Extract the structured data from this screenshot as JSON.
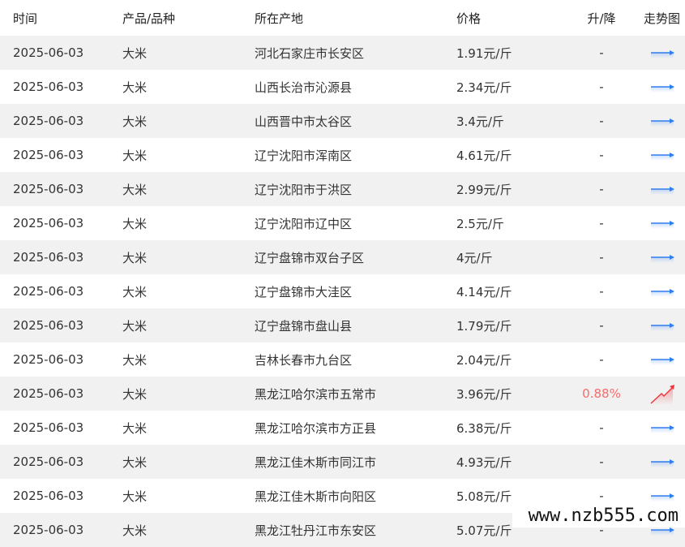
{
  "header": {
    "time": "时间",
    "product": "产品/品种",
    "origin": "所在产地",
    "price": "价格",
    "change": "升/降",
    "trend": "走势图"
  },
  "colors": {
    "flat": "#2f7ef0",
    "up": "#f0353f"
  },
  "rows": [
    {
      "time": "2025-06-03",
      "product": "大米",
      "origin": "河北石家庄市长安区",
      "price": "1.91元/斤",
      "change": "-",
      "trend": "flat"
    },
    {
      "time": "2025-06-03",
      "product": "大米",
      "origin": "山西长治市沁源县",
      "price": "2.34元/斤",
      "change": "-",
      "trend": "flat"
    },
    {
      "time": "2025-06-03",
      "product": "大米",
      "origin": "山西晋中市太谷区",
      "price": "3.4元/斤",
      "change": "-",
      "trend": "flat"
    },
    {
      "time": "2025-06-03",
      "product": "大米",
      "origin": "辽宁沈阳市浑南区",
      "price": "4.61元/斤",
      "change": "-",
      "trend": "flat"
    },
    {
      "time": "2025-06-03",
      "product": "大米",
      "origin": "辽宁沈阳市于洪区",
      "price": "2.99元/斤",
      "change": "-",
      "trend": "flat"
    },
    {
      "time": "2025-06-03",
      "product": "大米",
      "origin": "辽宁沈阳市辽中区",
      "price": "2.5元/斤",
      "change": "-",
      "trend": "flat"
    },
    {
      "time": "2025-06-03",
      "product": "大米",
      "origin": "辽宁盘锦市双台子区",
      "price": "4元/斤",
      "change": "-",
      "trend": "flat"
    },
    {
      "time": "2025-06-03",
      "product": "大米",
      "origin": "辽宁盘锦市大洼区",
      "price": "4.14元/斤",
      "change": "-",
      "trend": "flat"
    },
    {
      "time": "2025-06-03",
      "product": "大米",
      "origin": "辽宁盘锦市盘山县",
      "price": "1.79元/斤",
      "change": "-",
      "trend": "flat"
    },
    {
      "time": "2025-06-03",
      "product": "大米",
      "origin": "吉林长春市九台区",
      "price": "2.04元/斤",
      "change": "-",
      "trend": "flat"
    },
    {
      "time": "2025-06-03",
      "product": "大米",
      "origin": "黑龙江哈尔滨市五常市",
      "price": "3.96元/斤",
      "change": "0.88%",
      "trend": "up"
    },
    {
      "time": "2025-06-03",
      "product": "大米",
      "origin": "黑龙江哈尔滨市方正县",
      "price": "6.38元/斤",
      "change": "-",
      "trend": "flat"
    },
    {
      "time": "2025-06-03",
      "product": "大米",
      "origin": "黑龙江佳木斯市同江市",
      "price": "4.93元/斤",
      "change": "-",
      "trend": "flat"
    },
    {
      "time": "2025-06-03",
      "product": "大米",
      "origin": "黑龙江佳木斯市向阳区",
      "price": "5.08元/斤",
      "change": "-",
      "trend": "flat"
    },
    {
      "time": "2025-06-03",
      "product": "大米",
      "origin": "黑龙江牡丹江市东安区",
      "price": "5.07元/斤",
      "change": "-",
      "trend": "flat"
    }
  ],
  "watermark": "www.nzb555.com"
}
